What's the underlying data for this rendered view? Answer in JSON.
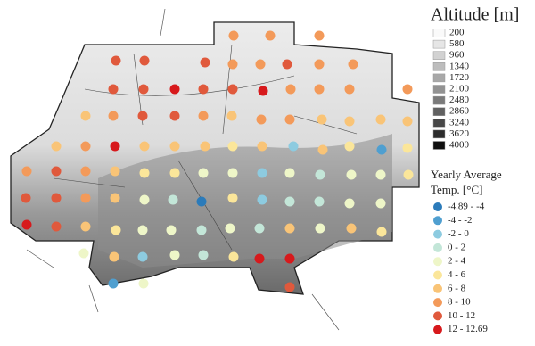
{
  "legend": {
    "altitude_title": "Altitude [m]",
    "altitude_classes": [
      {
        "label": "200",
        "color": "#fafafa"
      },
      {
        "label": "580",
        "color": "#e6e6e6"
      },
      {
        "label": "960",
        "color": "#d2d2d2"
      },
      {
        "label": "1340",
        "color": "#bdbdbd"
      },
      {
        "label": "1720",
        "color": "#a8a8a8"
      },
      {
        "label": "2100",
        "color": "#929292"
      },
      {
        "label": "2480",
        "color": "#7a7a7a"
      },
      {
        "label": "2860",
        "color": "#616161"
      },
      {
        "label": "3240",
        "color": "#474747"
      },
      {
        "label": "3620",
        "color": "#2c2c2c"
      },
      {
        "label": "4000",
        "color": "#0f0f0f"
      }
    ],
    "temperature_title": [
      "Yearly Average",
      "Temp. [°C]"
    ],
    "temperature_classes": [
      {
        "label": "-4.89 - -4",
        "color": "#2b7bba"
      },
      {
        "label": "-4 - -2",
        "color": "#4f9fd0"
      },
      {
        "label": "-2 - 0",
        "color": "#8dcbe0"
      },
      {
        "label": "0 - 2",
        "color": "#c3e6d8"
      },
      {
        "label": "2 - 4",
        "color": "#eef6c8"
      },
      {
        "label": "4 - 6",
        "color": "#fbe69a"
      },
      {
        "label": "6 - 8",
        "color": "#f9c477"
      },
      {
        "label": "8 - 10",
        "color": "#f39a5a"
      },
      {
        "label": "10 - 12",
        "color": "#e0593c"
      },
      {
        "label": "12 - 12.69",
        "color": "#d7191c"
      }
    ]
  }
}
